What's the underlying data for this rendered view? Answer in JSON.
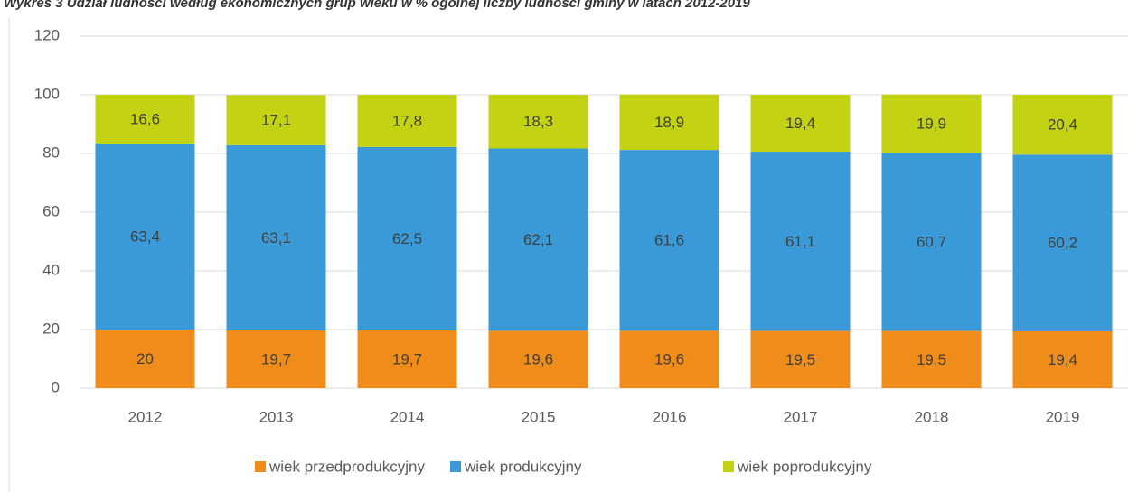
{
  "chart_data": {
    "type": "stacked_bar",
    "title": "Wykres 3 Udział ludności według ekonomicznych grup wieku w % ogólnej liczby ludności gminy w latach 2012-2019",
    "categories": [
      "2012",
      "2013",
      "2014",
      "2015",
      "2016",
      "2017",
      "2018",
      "2019"
    ],
    "series": [
      {
        "name": "wiek przedprodukcyjny",
        "color": "#f08c1a",
        "values": [
          20,
          19.7,
          19.7,
          19.6,
          19.6,
          19.5,
          19.5,
          19.4
        ],
        "value_labels": [
          "20",
          "19,7",
          "19,7",
          "19,6",
          "19,6",
          "19,5",
          "19,5",
          "19,4"
        ]
      },
      {
        "name": "wiek produkcyjny",
        "color": "#3a9ad7",
        "values": [
          63.4,
          63.1,
          62.5,
          62.1,
          61.6,
          61.1,
          60.7,
          60.2
        ],
        "value_labels": [
          "63,4",
          "63,1",
          "62,5",
          "62,1",
          "61,6",
          "61,1",
          "60,7",
          "60,2"
        ]
      },
      {
        "name": "wiek poprodukcyjny",
        "color": "#c4d214",
        "values": [
          16.6,
          17.1,
          17.8,
          18.3,
          18.9,
          19.4,
          19.9,
          20.4
        ],
        "value_labels": [
          "16,6",
          "17,1",
          "17,8",
          "18,3",
          "18,9",
          "19,4",
          "19,9",
          "20,4"
        ]
      }
    ],
    "ylim": [
      0,
      120
    ],
    "yticks": [
      0,
      20,
      40,
      60,
      80,
      100,
      120
    ],
    "grid": true,
    "legend": "bottom"
  }
}
